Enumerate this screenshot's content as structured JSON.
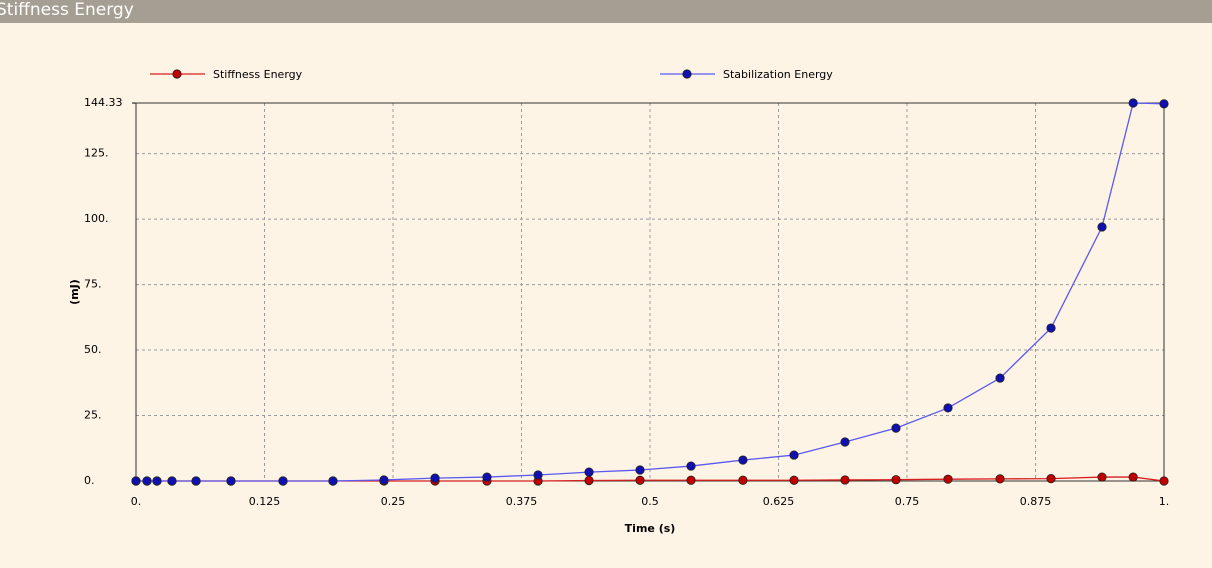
{
  "window_title": "Stiffness Energy",
  "chart_data": {
    "type": "line",
    "x_label": "Time (s)",
    "y_label": "(mJ)",
    "x": [
      0,
      0.0107,
      0.0204,
      0.035,
      0.0584,
      0.0924,
      0.143,
      0.1916,
      0.2412,
      0.2909,
      0.3414,
      0.3911,
      0.4407,
      0.4903,
      0.5399,
      0.5904,
      0.6401,
      0.6897,
      0.7393,
      0.7899,
      0.8405,
      0.8901,
      0.9397,
      0.97,
      1.0
    ],
    "series": [
      {
        "name": "Stiffness Energy",
        "color": "#d81e1e",
        "marker_color": "#c00000",
        "values": [
          0,
          0,
          0,
          0,
          0,
          0,
          0,
          0,
          0,
          0,
          0,
          0,
          0.2,
          0.3,
          0.3,
          0.3,
          0.3,
          0.4,
          0.5,
          0.7,
          0.8,
          0.9,
          1.5,
          1.5,
          0
        ]
      },
      {
        "name": "Stabilization Energy",
        "color": "#5a5af0",
        "marker_color": "#1010b0",
        "values": [
          0,
          0,
          0,
          0,
          0,
          0,
          0,
          0,
          0.4,
          1.1,
          1.5,
          2.3,
          3.4,
          4.2,
          5.7,
          8.0,
          9.9,
          14.9,
          20.2,
          27.9,
          39.3,
          58.4,
          97.0,
          144.33,
          144.0
        ]
      }
    ],
    "xlim": [
      0,
      1
    ],
    "xticks": [
      {
        "value": 0,
        "label": "0."
      },
      0.125,
      0.25,
      0.375,
      0.5,
      0.625,
      0.75,
      0.875,
      {
        "value": 1,
        "label": "1."
      }
    ],
    "ylim": [
      0,
      144.33
    ],
    "yticks": [
      {
        "value": 0,
        "label": "0."
      },
      {
        "value": 25,
        "label": "25."
      },
      {
        "value": 50,
        "label": "50."
      },
      {
        "value": 75,
        "label": "75."
      },
      {
        "value": 100,
        "label": "100."
      },
      {
        "value": 125,
        "label": "125."
      },
      144.33
    ],
    "grid": true
  }
}
